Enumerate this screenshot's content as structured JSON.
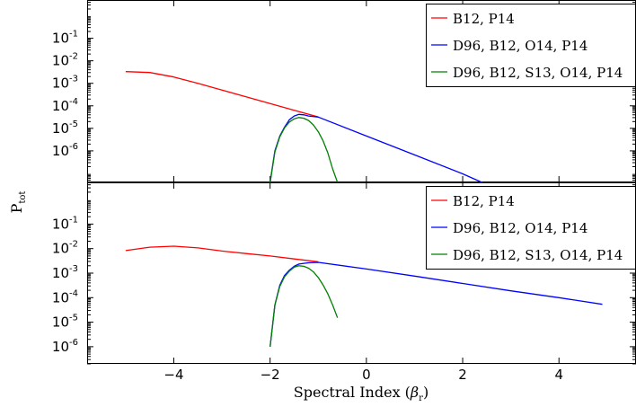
{
  "figure": {
    "ylabel_main": "P",
    "ylabel_sub": "tot",
    "xlabel_main": "Spectral Index (",
    "xlabel_symbol": "β",
    "xlabel_symbol_sub": "r",
    "xlabel_end": ")"
  },
  "chart_data": [
    {
      "type": "line",
      "panel": "top",
      "xlim": [
        -5.8,
        5.6
      ],
      "ylim_log10": [
        -7.4,
        0.7
      ],
      "yscale": "log",
      "legend_position": "top-right",
      "xticks": [
        -4,
        -2,
        0,
        2,
        4
      ],
      "xtick_labels": [
        "−4",
        "−2",
        "0",
        "2",
        "4"
      ],
      "yticks": [
        {
          "base": "10",
          "exp": "-1",
          "log": -1
        },
        {
          "base": "10",
          "exp": "-2",
          "log": -2
        },
        {
          "base": "10",
          "exp": "-3",
          "log": -3
        },
        {
          "base": "10",
          "exp": "-4",
          "log": -4
        },
        {
          "base": "10",
          "exp": "-5",
          "log": -5
        },
        {
          "base": "10",
          "exp": "-6",
          "log": -6
        }
      ],
      "series": [
        {
          "name": "B12, P14",
          "color": "#ff0000",
          "x": [
            -5.0,
            -4.5,
            -4.0,
            -3.5,
            -3.0,
            -2.5,
            -2.0,
            -1.5,
            -1.0
          ],
          "log10_y": [
            -2.48,
            -2.52,
            -2.72,
            -3.0,
            -3.3,
            -3.6,
            -3.9,
            -4.2,
            -4.49
          ]
        },
        {
          "name": "D96, B12, O14, P14",
          "color": "#0000ff",
          "x": [
            -2.0,
            -1.9,
            -1.8,
            -1.7,
            -1.6,
            -1.5,
            -1.4,
            -1.3,
            -1.2,
            -1.0,
            0.0,
            1.0,
            2.0,
            2.4
          ],
          "log10_y": [
            -7.4,
            -6.0,
            -5.35,
            -4.95,
            -4.62,
            -4.45,
            -4.38,
            -4.4,
            -4.45,
            -4.5,
            -5.34,
            -6.18,
            -7.02,
            -7.4
          ]
        },
        {
          "name": "D96, B12, S13, O14, P14",
          "color": "#008000",
          "x": [
            -2.0,
            -1.9,
            -1.8,
            -1.7,
            -1.6,
            -1.5,
            -1.4,
            -1.3,
            -1.2,
            -1.1,
            -1.0,
            -0.9,
            -0.8,
            -0.7,
            -0.6
          ],
          "log10_y": [
            -7.4,
            -6.05,
            -5.38,
            -4.98,
            -4.72,
            -4.58,
            -4.52,
            -4.55,
            -4.65,
            -4.85,
            -5.15,
            -5.55,
            -6.1,
            -6.8,
            -7.4
          ]
        }
      ]
    },
    {
      "type": "line",
      "panel": "bottom",
      "xlim": [
        -5.8,
        5.6
      ],
      "ylim_log10": [
        -6.7,
        0.7
      ],
      "yscale": "log",
      "legend_position": "top-right",
      "xticks": [
        -4,
        -2,
        0,
        2,
        4
      ],
      "xtick_labels": [
        "−4",
        "−2",
        "0",
        "2",
        "4"
      ],
      "yticks": [
        {
          "base": "10",
          "exp": "-1",
          "log": -1
        },
        {
          "base": "10",
          "exp": "-2",
          "log": -2
        },
        {
          "base": "10",
          "exp": "-3",
          "log": -3
        },
        {
          "base": "10",
          "exp": "-4",
          "log": -4
        },
        {
          "base": "10",
          "exp": "-5",
          "log": -5
        },
        {
          "base": "10",
          "exp": "-6",
          "log": -6
        }
      ],
      "series": [
        {
          "name": "B12, P14",
          "color": "#ff0000",
          "x": [
            -5.0,
            -4.5,
            -4.0,
            -3.5,
            -3.0,
            -2.5,
            -2.0,
            -1.5,
            -1.0
          ],
          "log10_y": [
            -2.08,
            -1.94,
            -1.9,
            -1.97,
            -2.1,
            -2.2,
            -2.3,
            -2.42,
            -2.54
          ]
        },
        {
          "name": "D96, B12, O14, P14",
          "color": "#0000ff",
          "x": [
            -2.0,
            -1.9,
            -1.8,
            -1.7,
            -1.6,
            -1.5,
            -1.4,
            -1.3,
            -1.2,
            -1.0,
            0.0,
            1.0,
            2.0,
            3.0,
            4.0,
            4.9
          ],
          "log10_y": [
            -6.0,
            -4.3,
            -3.5,
            -3.1,
            -2.88,
            -2.72,
            -2.63,
            -2.6,
            -2.58,
            -2.56,
            -2.83,
            -3.12,
            -3.42,
            -3.72,
            -4.0,
            -4.27
          ]
        },
        {
          "name": "D96, B12, S13, O14, P14",
          "color": "#008000",
          "x": [
            -2.0,
            -1.9,
            -1.8,
            -1.7,
            -1.6,
            -1.5,
            -1.4,
            -1.3,
            -1.2,
            -1.1,
            -1.0,
            -0.9,
            -0.8,
            -0.7,
            -0.6
          ],
          "log10_y": [
            -6.0,
            -4.3,
            -3.55,
            -3.15,
            -2.92,
            -2.76,
            -2.7,
            -2.72,
            -2.8,
            -2.95,
            -3.18,
            -3.48,
            -3.85,
            -4.3,
            -4.82
          ]
        }
      ]
    }
  ]
}
